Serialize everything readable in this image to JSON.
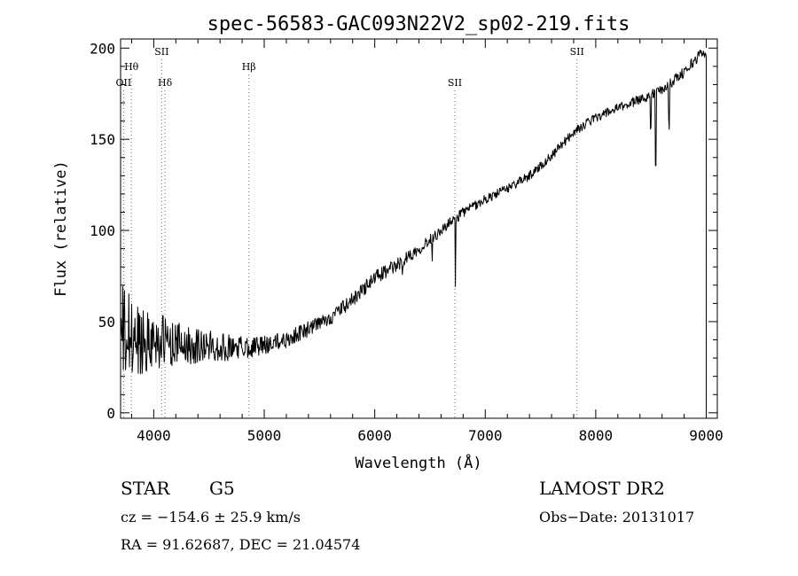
{
  "chart_data": {
    "type": "line",
    "title": "spec-56583-GAC093N22V2_sp02-219.fits",
    "xlabel": "Wavelength (Å)",
    "ylabel": "Flux (relative)",
    "xlim": [
      3700,
      9100
    ],
    "ylim": [
      -3,
      205
    ],
    "xticks": [
      4000,
      5000,
      6000,
      7000,
      8000,
      9000
    ],
    "yticks": [
      0,
      50,
      100,
      150,
      200
    ],
    "grid": false,
    "series_color": "#000000",
    "line_markers": [
      {
        "name": "OII",
        "wavelength": 3727,
        "label_tier": 3
      },
      {
        "name": "Hθ",
        "wavelength": 3798,
        "label_tier": 2
      },
      {
        "name": "SII",
        "wavelength": 4072,
        "label_tier": 1
      },
      {
        "name": "Hδ",
        "wavelength": 4102,
        "label_tier": 3
      },
      {
        "name": "Hβ",
        "wavelength": 4861,
        "label_tier": 2
      },
      {
        "name": "SII",
        "wavelength": 6725,
        "label_tier": 3
      },
      {
        "name": "SII",
        "wavelength": 7830,
        "label_tier": 1
      }
    ],
    "continuum": {
      "x": [
        3700,
        3800,
        3900,
        4000,
        4200,
        4400,
        4600,
        4800,
        5000,
        5200,
        5400,
        5600,
        5800,
        6000,
        6200,
        6400,
        6600,
        6800,
        7000,
        7200,
        7400,
        7600,
        7800,
        8000,
        8200,
        8400,
        8600,
        8800,
        8950,
        9000
      ],
      "y": [
        42,
        40,
        40,
        40,
        38,
        37,
        36,
        36,
        37,
        40,
        46,
        52,
        62,
        74,
        81,
        90,
        100,
        110,
        117,
        123,
        130,
        141,
        154,
        162,
        167,
        172,
        177,
        187,
        197,
        198
      ]
    },
    "absorption_features": [
      {
        "x": 6730,
        "depth": 40
      },
      {
        "x": 6250,
        "depth": 10
      },
      {
        "x": 6520,
        "depth": 10
      },
      {
        "x": 8498,
        "depth": 18
      },
      {
        "x": 8542,
        "depth": 38
      },
      {
        "x": 8662,
        "depth": 22
      }
    ],
    "noise_amplitude": {
      "x": [
        3700,
        3800,
        4000,
        4200,
        4600,
        5000,
        5500,
        6000,
        7000,
        8000,
        9000
      ],
      "y": [
        30,
        24,
        16,
        12,
        8,
        5,
        4,
        4,
        2.5,
        2.5,
        3
      ]
    }
  },
  "info": {
    "object_class": "STAR",
    "subclass": "G5",
    "survey": "LAMOST DR2",
    "cz_line": "cz = −154.6 ± 25.9 km/s",
    "obs_date_line": "Obs−Date: 20131017",
    "coords_line": "RA =  91.62687, DEC =  21.04574"
  }
}
